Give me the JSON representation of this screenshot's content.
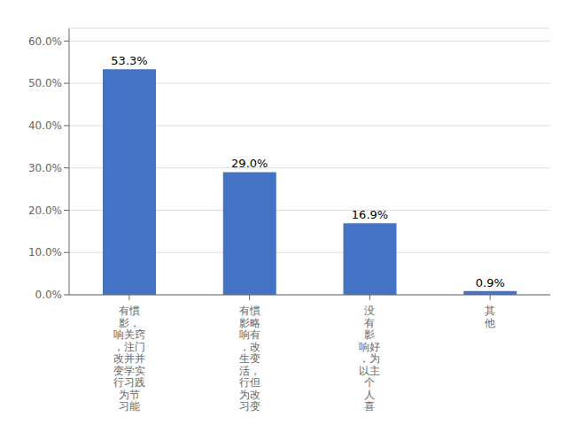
{
  "chart_data": {
    "type": "bar",
    "categories": [
      "有慣\n影，\n响关窍\n，注门\n改并并\n变学实\n行习践\n为节\n习能",
      "有慣\n影略\n响有\n，改\n生变\n活，\n行但\n为改\n习变",
      "没\n有\n影\n响好\n，为\n以主\n个\n人\n喜",
      "其\n他"
    ],
    "values": [
      53.3,
      29.0,
      16.9,
      0.9
    ],
    "value_labels": [
      "53.3%",
      "29.0%",
      "16.9%",
      "0.9%"
    ],
    "color": "#4472C4",
    "ylim": [
      0,
      63
    ],
    "yticks": [
      {
        "value": 0,
        "label": "0.0%"
      },
      {
        "value": 10,
        "label": "10.0%"
      },
      {
        "value": 20,
        "label": "20.0%"
      },
      {
        "value": 30,
        "label": "30.0%"
      },
      {
        "value": 40,
        "label": "40.0%"
      },
      {
        "value": 50,
        "label": "50.0%"
      },
      {
        "value": 60,
        "label": "60.0%"
      }
    ],
    "grid": true,
    "data_labels": true
  }
}
